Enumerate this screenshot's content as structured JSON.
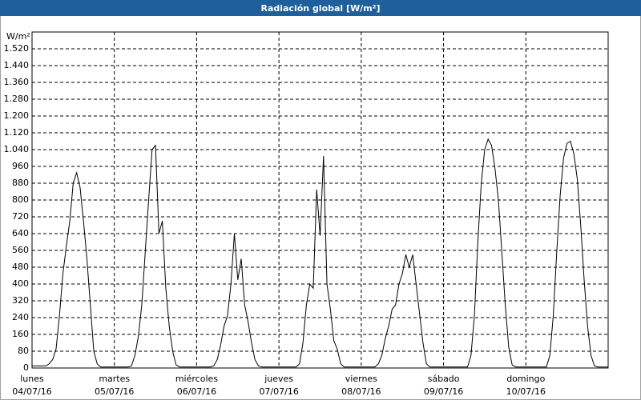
{
  "chart_data": {
    "type": "line",
    "title": "Radiación global [W/m²]",
    "y_unit": "W/m²",
    "x": [
      0,
      1,
      2,
      3,
      4,
      5,
      6,
      7,
      8,
      9,
      10,
      11,
      12,
      13,
      14,
      15,
      16,
      17,
      18,
      19,
      20,
      21,
      22,
      23,
      24,
      25,
      26,
      27,
      28,
      29,
      30,
      31,
      32,
      33,
      34,
      35,
      36,
      37,
      38,
      39,
      40,
      41,
      42,
      43,
      44,
      45,
      46,
      47,
      48,
      49,
      50,
      51,
      52,
      53,
      54,
      55,
      56,
      57,
      58,
      59,
      60,
      61,
      62,
      63,
      64,
      65,
      66,
      67,
      68,
      69,
      70,
      71,
      72,
      73,
      74,
      75,
      76,
      77,
      78,
      79,
      80,
      81,
      82,
      83,
      84,
      85,
      86,
      87,
      88,
      89,
      90,
      91,
      92,
      93,
      94,
      95,
      96,
      97,
      98,
      99,
      100,
      101,
      102,
      103,
      104,
      105,
      106,
      107,
      108,
      109,
      110,
      111,
      112,
      113,
      114,
      115,
      116,
      117,
      118,
      119,
      120,
      121,
      122,
      123,
      124,
      125,
      126,
      127,
      128,
      129,
      130,
      131,
      132,
      133,
      134,
      135,
      136,
      137,
      138,
      139,
      140,
      141,
      142,
      143,
      144,
      145,
      146,
      147,
      148,
      149,
      150,
      151,
      152,
      153,
      154,
      155,
      156,
      157,
      158,
      159,
      160,
      161,
      162,
      163,
      164,
      165,
      166,
      167,
      168
    ],
    "series": [
      {
        "color": "#000000",
        "values": [
          10,
          10,
          10,
          10,
          10,
          20,
          40,
          90,
          250,
          450,
          580,
          700,
          880,
          930,
          860,
          700,
          520,
          300,
          80,
          20,
          5,
          5,
          5,
          5,
          5,
          5,
          5,
          5,
          5,
          10,
          60,
          150,
          300,
          550,
          800,
          1040,
          1060,
          640,
          700,
          380,
          200,
          80,
          15,
          5,
          5,
          5,
          5,
          5,
          5,
          5,
          5,
          5,
          5,
          10,
          40,
          110,
          200,
          250,
          400,
          640,
          420,
          520,
          300,
          220,
          120,
          40,
          10,
          5,
          5,
          5,
          5,
          5,
          5,
          5,
          5,
          5,
          5,
          5,
          20,
          120,
          300,
          400,
          380,
          850,
          630,
          1010,
          400,
          280,
          130,
          90,
          20,
          5,
          5,
          5,
          5,
          5,
          5,
          5,
          5,
          5,
          5,
          20,
          60,
          140,
          200,
          280,
          300,
          400,
          450,
          540,
          480,
          540,
          400,
          260,
          120,
          20,
          5,
          5,
          5,
          5,
          5,
          5,
          5,
          5,
          5,
          5,
          5,
          5,
          60,
          250,
          600,
          880,
          1040,
          1090,
          1060,
          950,
          800,
          550,
          300,
          100,
          15,
          5,
          5,
          5,
          5,
          5,
          5,
          5,
          5,
          5,
          5,
          60,
          250,
          550,
          820,
          1000,
          1070,
          1080,
          1020,
          900,
          680,
          420,
          200,
          60,
          10,
          5,
          5,
          5,
          5
        ]
      }
    ],
    "xlim": [
      0,
      168
    ],
    "xticks": [
      {
        "value": 0,
        "label": "lunes",
        "date": "04/07/16"
      },
      {
        "value": 24,
        "label": "martes",
        "date": "05/07/16"
      },
      {
        "value": 48,
        "label": "miércoles",
        "date": "06/07/16"
      },
      {
        "value": 72,
        "label": "jueves",
        "date": "07/07/16"
      },
      {
        "value": 96,
        "label": "viernes",
        "date": "08/07/16"
      },
      {
        "value": 120,
        "label": "sábado",
        "date": "09/07/16"
      },
      {
        "value": 144,
        "label": "domingo",
        "date": "10/07/16"
      }
    ],
    "ylim": [
      0,
      1600
    ],
    "yticks": [
      0,
      80,
      160,
      240,
      320,
      400,
      480,
      560,
      640,
      720,
      800,
      880,
      960,
      {
        "value": 1040,
        "label": "1.040"
      },
      {
        "value": 1120,
        "label": "1.120"
      },
      {
        "value": 1200,
        "label": "1.200"
      },
      {
        "value": 1280,
        "label": "1.280"
      },
      {
        "value": 1360,
        "label": "1.360"
      },
      {
        "value": 1440,
        "label": "1.440"
      },
      {
        "value": 1520,
        "label": "1.520"
      }
    ],
    "grid": true
  }
}
